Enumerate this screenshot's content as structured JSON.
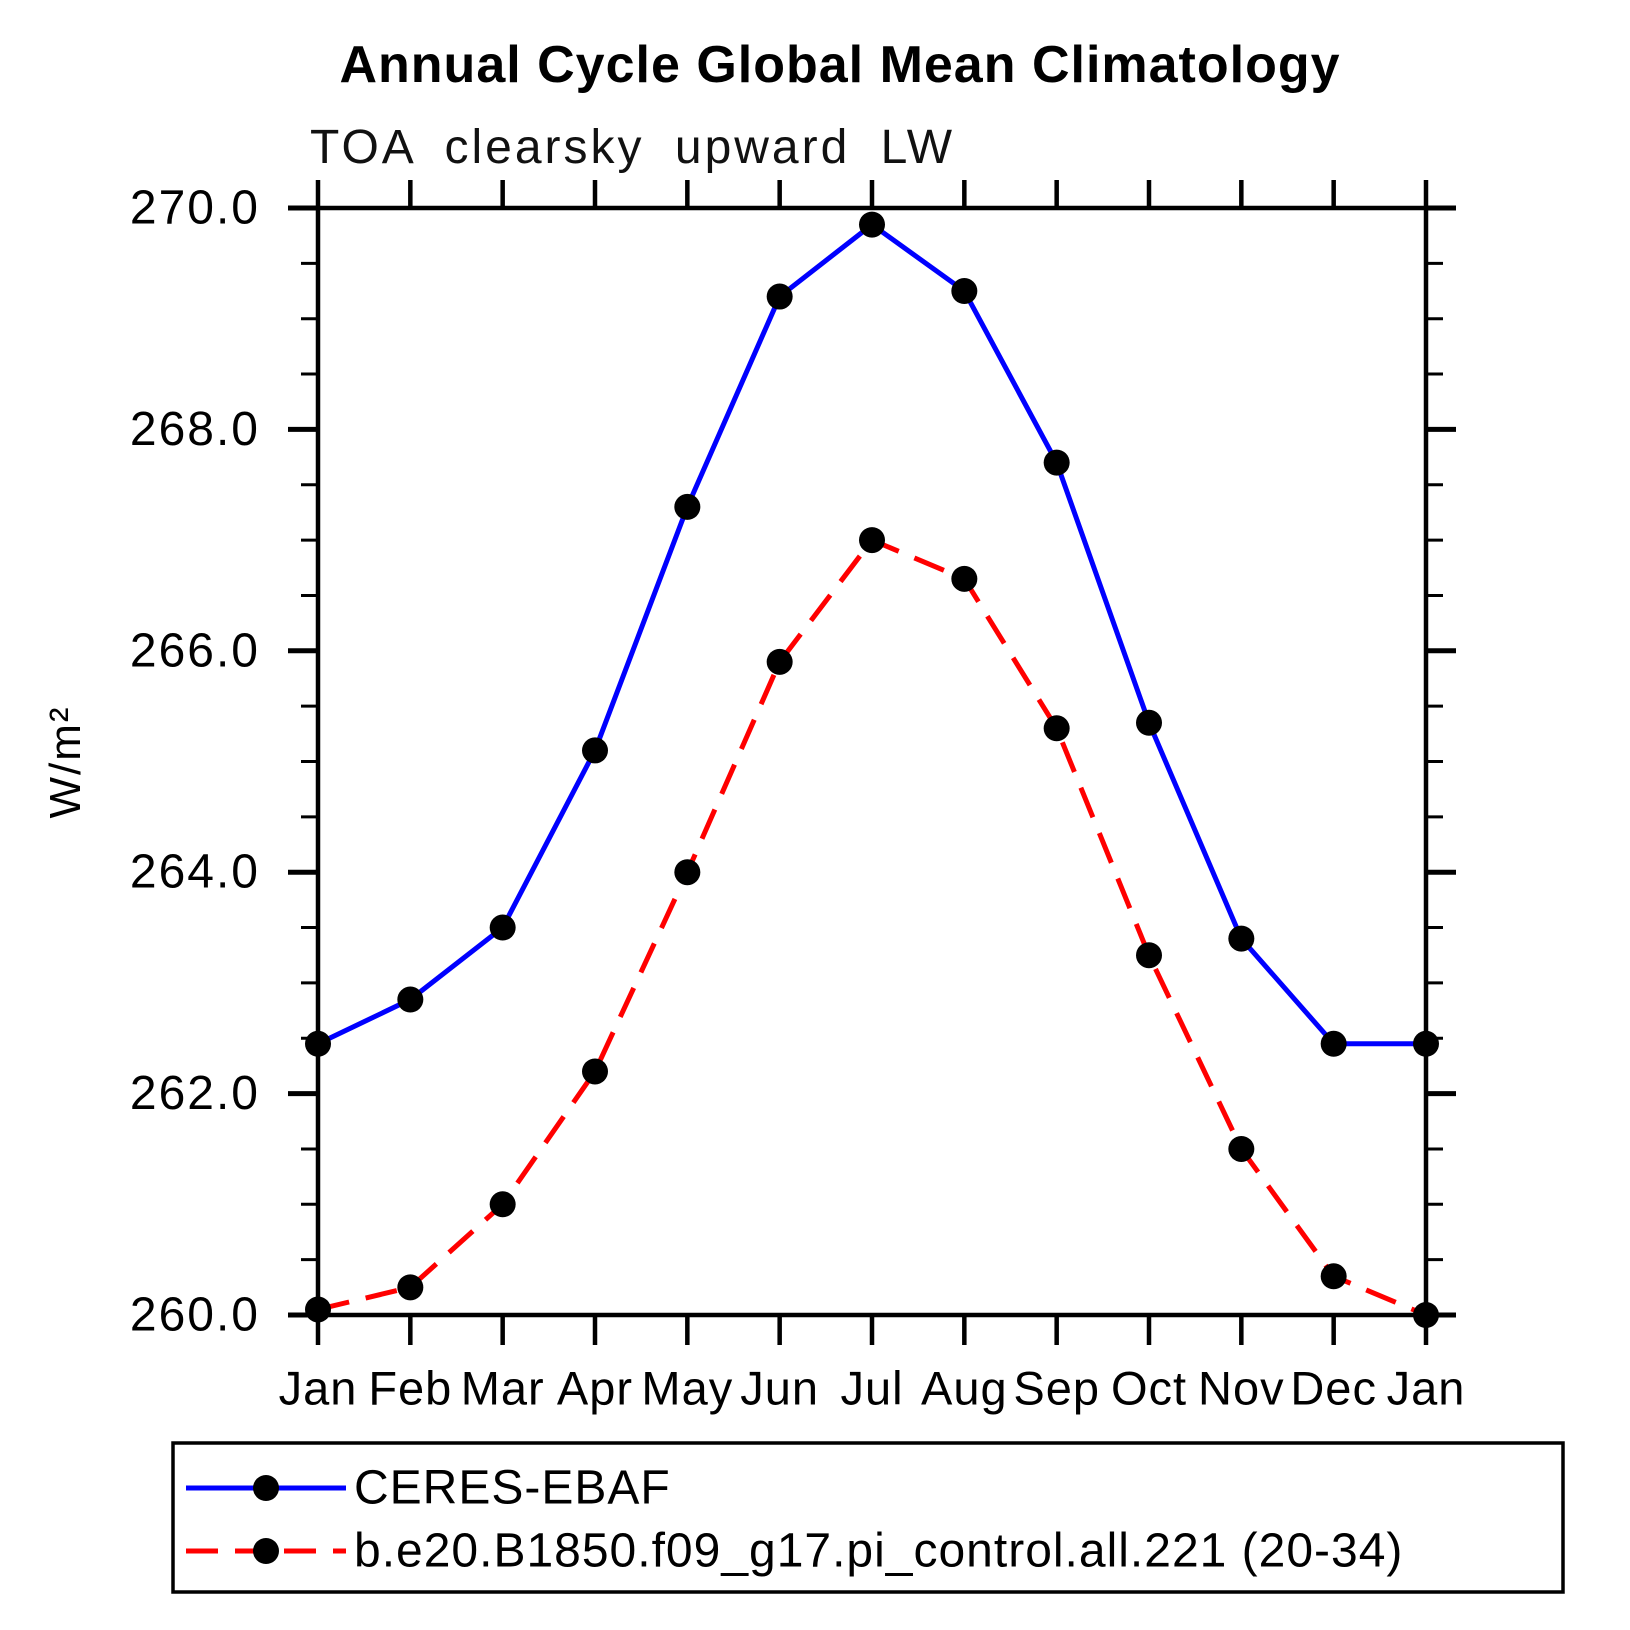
{
  "chart_data": {
    "type": "line",
    "title": "Annual Cycle Global Mean Climatology",
    "subtitle": "TOA clearsky upward LW",
    "ylabel": "W/m²",
    "xlabel": "",
    "categories": [
      "Jan",
      "Feb",
      "Mar",
      "Apr",
      "May",
      "Jun",
      "Jul",
      "Aug",
      "Sep",
      "Oct",
      "Nov",
      "Dec",
      "Jan"
    ],
    "ylim": [
      260.0,
      270.0
    ],
    "y_major_tick_step": 2.0,
    "y_minor_tick_step": 0.5,
    "y_tick_labels": [
      "260.0",
      "262.0",
      "264.0",
      "266.0",
      "268.0",
      "270.0"
    ],
    "grid": false,
    "legend_position": "bottom-left-box",
    "axis_color": "#000000",
    "marker_color": "#000000",
    "series": [
      {
        "name": "CERES-EBAF",
        "color": "#0000ff",
        "line_style": "solid",
        "marker": "circle",
        "values": [
          262.45,
          262.85,
          263.5,
          265.1,
          267.3,
          269.2,
          269.85,
          269.25,
          267.7,
          265.35,
          263.4,
          262.45,
          262.45
        ]
      },
      {
        "name": "b.e20.B1850.f09_g17.pi_control.all.221 (20-34)",
        "color": "#ff0000",
        "line_style": "dashed",
        "marker": "circle",
        "values": [
          260.05,
          260.25,
          261.0,
          262.2,
          264.0,
          265.9,
          267.0,
          266.65,
          265.3,
          263.25,
          261.5,
          260.35,
          260.0
        ]
      }
    ]
  }
}
